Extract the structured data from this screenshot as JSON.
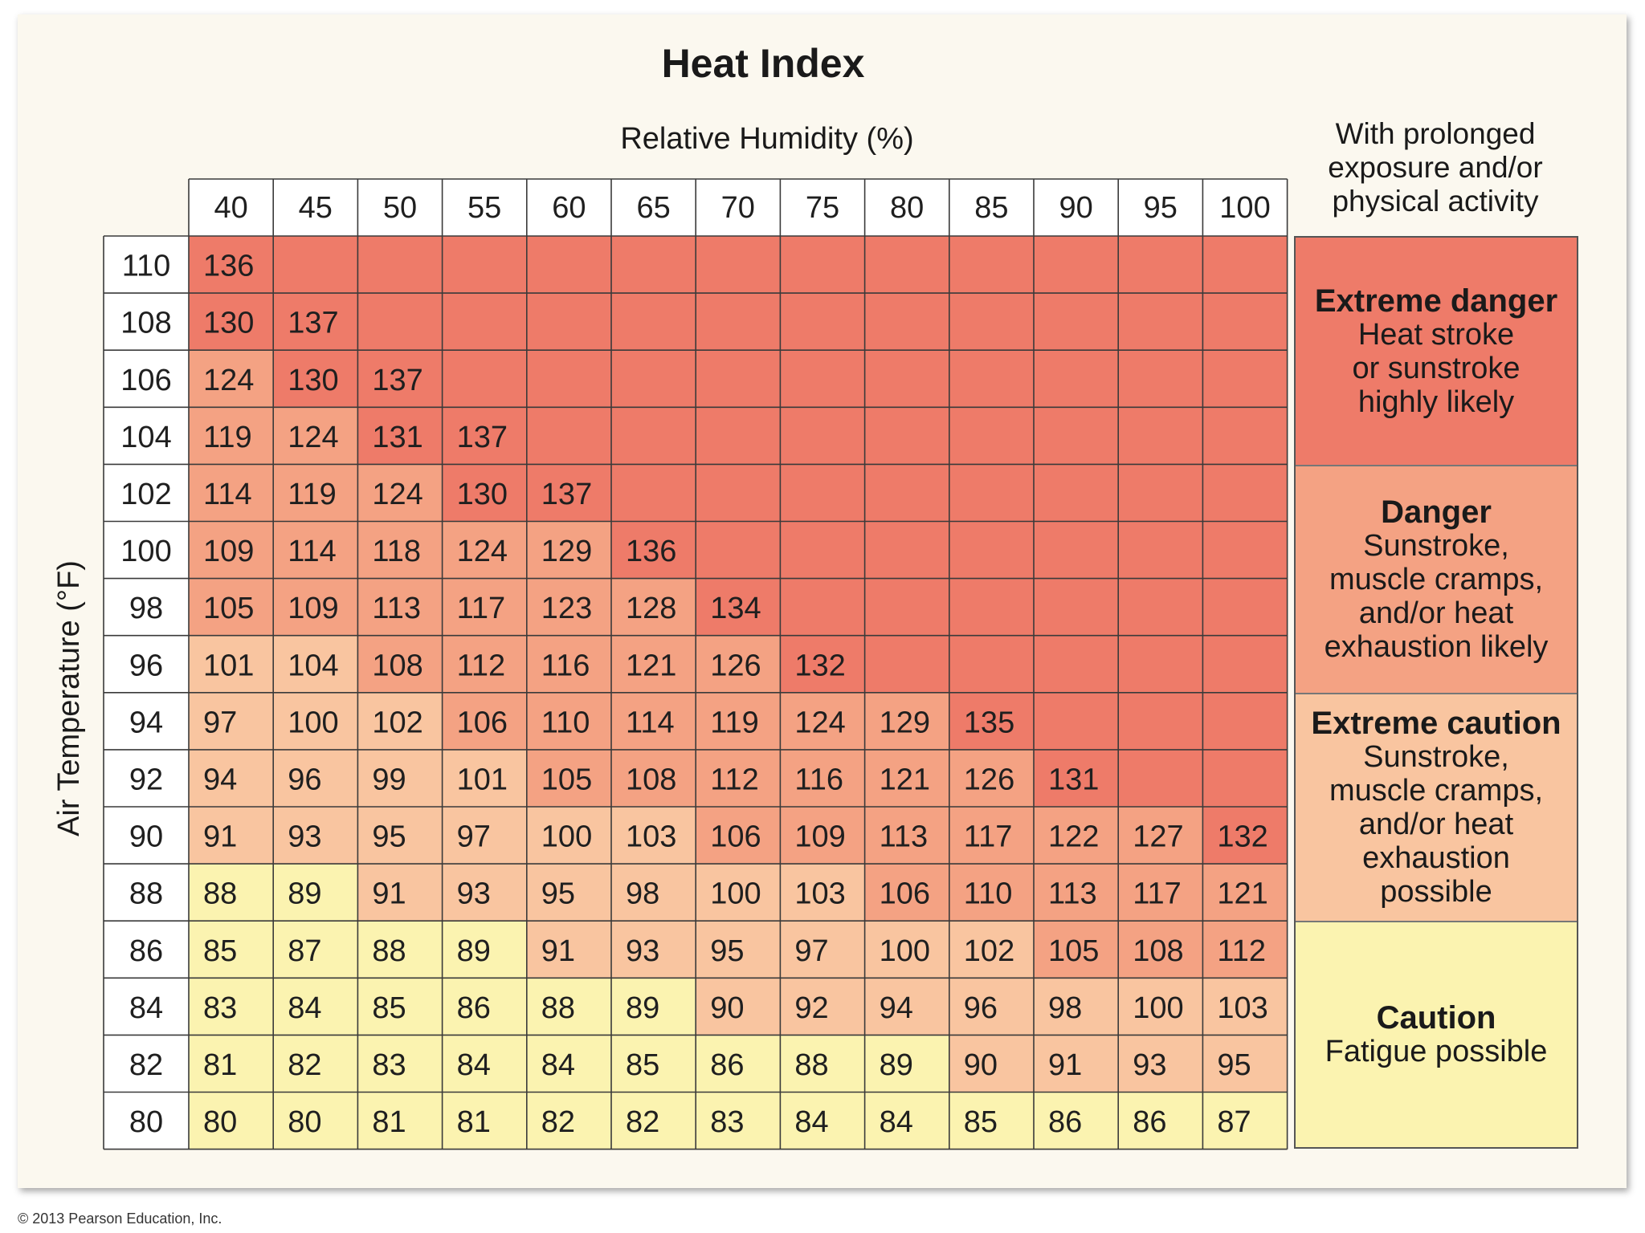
{
  "chart_data": {
    "type": "table",
    "title": "Heat Index",
    "xlabel": "Relative Humidity (%)",
    "ylabel": "Air Temperature (°F)",
    "humidity": [
      40,
      45,
      50,
      55,
      60,
      65,
      70,
      75,
      80,
      85,
      90,
      95,
      100
    ],
    "temperatures": [
      110,
      108,
      106,
      104,
      102,
      100,
      98,
      96,
      94,
      92,
      90,
      88,
      86,
      84,
      82,
      80
    ],
    "rows": [
      [
        136,
        null,
        null,
        null,
        null,
        null,
        null,
        null,
        null,
        null,
        null,
        null,
        null
      ],
      [
        130,
        137,
        null,
        null,
        null,
        null,
        null,
        null,
        null,
        null,
        null,
        null,
        null
      ],
      [
        124,
        130,
        137,
        null,
        null,
        null,
        null,
        null,
        null,
        null,
        null,
        null,
        null
      ],
      [
        119,
        124,
        131,
        137,
        null,
        null,
        null,
        null,
        null,
        null,
        null,
        null,
        null
      ],
      [
        114,
        119,
        124,
        130,
        137,
        null,
        null,
        null,
        null,
        null,
        null,
        null,
        null
      ],
      [
        109,
        114,
        118,
        124,
        129,
        136,
        null,
        null,
        null,
        null,
        null,
        null,
        null
      ],
      [
        105,
        109,
        113,
        117,
        123,
        128,
        134,
        null,
        null,
        null,
        null,
        null,
        null
      ],
      [
        101,
        104,
        108,
        112,
        116,
        121,
        126,
        132,
        null,
        null,
        null,
        null,
        null
      ],
      [
        97,
        100,
        102,
        106,
        110,
        114,
        119,
        124,
        129,
        135,
        null,
        null,
        null
      ],
      [
        94,
        96,
        99,
        101,
        105,
        108,
        112,
        116,
        121,
        126,
        131,
        null,
        null
      ],
      [
        91,
        93,
        95,
        97,
        100,
        103,
        106,
        109,
        113,
        117,
        122,
        127,
        132
      ],
      [
        88,
        89,
        91,
        93,
        95,
        98,
        100,
        103,
        106,
        110,
        113,
        117,
        121
      ],
      [
        85,
        87,
        88,
        89,
        91,
        93,
        95,
        97,
        100,
        102,
        105,
        108,
        112
      ],
      [
        83,
        84,
        85,
        86,
        88,
        89,
        90,
        92,
        94,
        96,
        98,
        100,
        103
      ],
      [
        81,
        82,
        83,
        84,
        84,
        85,
        86,
        88,
        89,
        90,
        91,
        93,
        95
      ],
      [
        80,
        80,
        81,
        81,
        82,
        82,
        83,
        84,
        84,
        85,
        86,
        86,
        87
      ]
    ]
  },
  "legend": {
    "note": "With prolonged\nexposure and/or\nphysical activity",
    "categories": [
      {
        "heading": "Extreme danger",
        "text": "Heat stroke\nor sunstroke\nhighly likely",
        "color": "#ee7b69",
        "min": 130
      },
      {
        "heading": "Danger",
        "text": "Sunstroke,\nmuscle cramps,\nand/or heat\nexhaustion likely",
        "color": "#f4a283",
        "min": 105
      },
      {
        "heading": "Extreme caution",
        "text": "Sunstroke,\nmuscle cramps,\nand/or heat\nexhaustion\npossible",
        "color": "#f9c5a0",
        "min": 90
      },
      {
        "heading": "Caution",
        "text": "Fatigue possible",
        "color": "#fbf3b0",
        "min": 80
      }
    ]
  },
  "copyright": "© 2013 Pearson Education, Inc."
}
